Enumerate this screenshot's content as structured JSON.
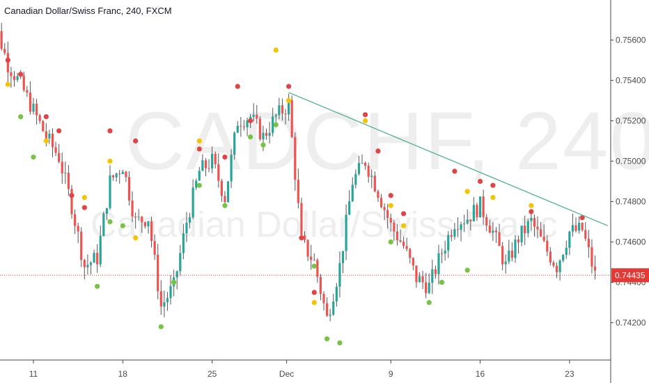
{
  "header": {
    "title": "Canadian Dollar/Swiss Franc, 240, FXCM"
  },
  "watermark": {
    "symbol": "CADCHF, 240",
    "name": "Canadian Dollar/Swiss Franc"
  },
  "colors": {
    "up_candle": "#26a69a",
    "down_candle": "#ef5350",
    "wick": "#555555",
    "dot_red": "#e04545",
    "dot_yellow": "#f5c400",
    "dot_green": "#76c442",
    "trendline": "#4caf8f",
    "last_price": "#e53935",
    "axis_text": "#4a4a4a",
    "axis_line": "#444444"
  },
  "chart_data": {
    "type": "candlestick",
    "title": "Canadian Dollar/Swiss Franc, 240, FXCM",
    "ylim": [
      0.7407,
      0.7576
    ],
    "y_ticks": [
      "0.75600",
      "0.75400",
      "0.75200",
      "0.75000",
      "0.74800",
      "0.74600",
      "0.74400",
      "0.74200"
    ],
    "x_ticks": [
      "11",
      "18",
      "25",
      "Dec",
      "9",
      "16",
      "23"
    ],
    "last_price": "0.74435",
    "last_price_value": 0.74435,
    "close_path": [
      {
        "x": "Nov 7",
        "y": 0.7515
      },
      {
        "x": "Nov 8",
        "y": 0.7568
      },
      {
        "x": "Nov 9",
        "y": 0.7548
      },
      {
        "x": "Nov 10",
        "y": 0.7538
      },
      {
        "x": "Nov 12",
        "y": 0.7512
      },
      {
        "x": "Nov 13",
        "y": 0.7502
      },
      {
        "x": "Nov 14",
        "y": 0.7478
      },
      {
        "x": "Nov 15",
        "y": 0.7448
      },
      {
        "x": "Nov 16",
        "y": 0.7452
      },
      {
        "x": "Nov 17",
        "y": 0.749
      },
      {
        "x": "Nov 18",
        "y": 0.7498
      },
      {
        "x": "Nov 19",
        "y": 0.747
      },
      {
        "x": "Nov 20",
        "y": 0.7472
      },
      {
        "x": "Nov 21",
        "y": 0.7428
      },
      {
        "x": "Nov 22",
        "y": 0.7438
      },
      {
        "x": "Nov 23",
        "y": 0.747
      },
      {
        "x": "Nov 24",
        "y": 0.7495
      },
      {
        "x": "Nov 25",
        "y": 0.75
      },
      {
        "x": "Nov 26",
        "y": 0.7482
      },
      {
        "x": "Nov 27",
        "y": 0.752
      },
      {
        "x": "Nov 28",
        "y": 0.7522
      },
      {
        "x": "Nov 29",
        "y": 0.7512
      },
      {
        "x": "Nov 30",
        "y": 0.7522
      },
      {
        "x": "Dec 1",
        "y": 0.7528
      },
      {
        "x": "Dec 2",
        "y": 0.746
      },
      {
        "x": "Dec 3",
        "y": 0.745
      },
      {
        "x": "Dec 4",
        "y": 0.7422
      },
      {
        "x": "Dec 5",
        "y": 0.7448
      },
      {
        "x": "Dec 6",
        "y": 0.749
      },
      {
        "x": "Dec 7",
        "y": 0.75
      },
      {
        "x": "Dec 8",
        "y": 0.7485
      },
      {
        "x": "Dec 9",
        "y": 0.7468
      },
      {
        "x": "Dec 10",
        "y": 0.7458
      },
      {
        "x": "Dec 11",
        "y": 0.7442
      },
      {
        "x": "Dec 12",
        "y": 0.7438
      },
      {
        "x": "Dec 13",
        "y": 0.7455
      },
      {
        "x": "Dec 14",
        "y": 0.747
      },
      {
        "x": "Dec 15",
        "y": 0.7472
      },
      {
        "x": "Dec 16",
        "y": 0.7478
      },
      {
        "x": "Dec 17",
        "y": 0.7465
      },
      {
        "x": "Dec 18",
        "y": 0.7448
      },
      {
        "x": "Dec 19",
        "y": 0.7462
      },
      {
        "x": "Dec 20",
        "y": 0.747
      },
      {
        "x": "Dec 21",
        "y": 0.7458
      },
      {
        "x": "Dec 22",
        "y": 0.7448
      },
      {
        "x": "Dec 23",
        "y": 0.7465
      },
      {
        "x": "Dec 24",
        "y": 0.7466
      },
      {
        "x": "Dec 25",
        "y": 0.74435
      }
    ],
    "trendline": [
      {
        "x": "Dec 1",
        "y": 0.7534
      },
      {
        "x": "Dec 26",
        "y": 0.7468
      }
    ],
    "dots_red": [
      {
        "x": "Nov 8",
        "y": 0.7571
      },
      {
        "x": "Nov 9",
        "y": 0.755
      },
      {
        "x": "Nov 10",
        "y": 0.7543
      },
      {
        "x": "Nov 12",
        "y": 0.7522
      },
      {
        "x": "Nov 13",
        "y": 0.7515
      },
      {
        "x": "Nov 14",
        "y": 0.7483
      },
      {
        "x": "Nov 15",
        "y": 0.7477
      },
      {
        "x": "Nov 17",
        "y": 0.7515
      },
      {
        "x": "Nov 19",
        "y": 0.751
      },
      {
        "x": "Nov 24",
        "y": 0.7506
      },
      {
        "x": "Nov 26",
        "y": 0.7502
      },
      {
        "x": "Nov 27",
        "y": 0.7537
      },
      {
        "x": "Nov 28",
        "y": 0.752
      },
      {
        "x": "Dec 1",
        "y": 0.7537
      },
      {
        "x": "Dec 2",
        "y": 0.7462
      },
      {
        "x": "Dec 3",
        "y": 0.7435
      },
      {
        "x": "Dec 7",
        "y": 0.7523
      },
      {
        "x": "Dec 8",
        "y": 0.7505
      },
      {
        "x": "Dec 9",
        "y": 0.7483
      },
      {
        "x": "Dec 10",
        "y": 0.7474
      },
      {
        "x": "Dec 14",
        "y": 0.7495
      },
      {
        "x": "Dec 16",
        "y": 0.749
      },
      {
        "x": "Dec 17",
        "y": 0.7488
      },
      {
        "x": "Dec 20",
        "y": 0.7475
      },
      {
        "x": "Dec 24",
        "y": 0.7472
      }
    ],
    "dots_yellow": [
      {
        "x": "Nov 8",
        "y": 0.756
      },
      {
        "x": "Nov 9",
        "y": 0.7538
      },
      {
        "x": "Nov 12",
        "y": 0.751
      },
      {
        "x": "Nov 15",
        "y": 0.7482
      },
      {
        "x": "Nov 17",
        "y": 0.75
      },
      {
        "x": "Nov 19",
        "y": 0.7462
      },
      {
        "x": "Nov 24",
        "y": 0.751
      },
      {
        "x": "Nov 30",
        "y": 0.7555
      },
      {
        "x": "Dec 1",
        "y": 0.753
      },
      {
        "x": "Dec 3",
        "y": 0.743
      },
      {
        "x": "Dec 7",
        "y": 0.752
      },
      {
        "x": "Dec 9",
        "y": 0.7478
      },
      {
        "x": "Dec 10",
        "y": 0.7468
      },
      {
        "x": "Dec 15",
        "y": 0.7485
      },
      {
        "x": "Dec 17",
        "y": 0.7482
      },
      {
        "x": "Dec 20",
        "y": 0.7478
      }
    ],
    "dots_green": [
      {
        "x": "Nov 7",
        "y": 0.7518
      },
      {
        "x": "Nov 10",
        "y": 0.7522
      },
      {
        "x": "Nov 11",
        "y": 0.7502
      },
      {
        "x": "Nov 16",
        "y": 0.7438
      },
      {
        "x": "Nov 17",
        "y": 0.747
      },
      {
        "x": "Nov 18",
        "y": 0.7468
      },
      {
        "x": "Nov 21",
        "y": 0.7418
      },
      {
        "x": "Nov 22",
        "y": 0.744
      },
      {
        "x": "Nov 24",
        "y": 0.7488
      },
      {
        "x": "Nov 26",
        "y": 0.7478
      },
      {
        "x": "Nov 28",
        "y": 0.7512
      },
      {
        "x": "Nov 29",
        "y": 0.7508
      },
      {
        "x": "Nov 30",
        "y": 0.7518
      },
      {
        "x": "Dec 3",
        "y": 0.7448
      },
      {
        "x": "Dec 4",
        "y": 0.7412
      },
      {
        "x": "Dec 5",
        "y": 0.741
      },
      {
        "x": "Dec 9",
        "y": 0.746
      },
      {
        "x": "Dec 12",
        "y": 0.743
      },
      {
        "x": "Dec 13",
        "y": 0.744
      },
      {
        "x": "Dec 15",
        "y": 0.7446
      }
    ]
  }
}
